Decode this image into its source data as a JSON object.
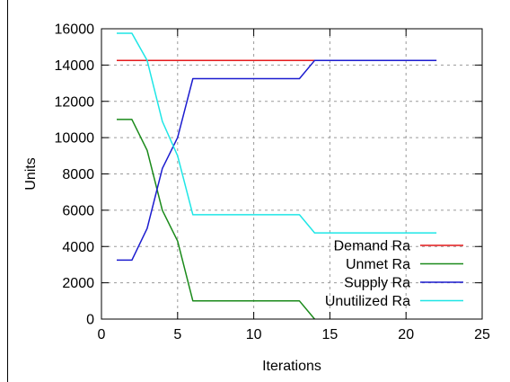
{
  "chart_data": {
    "type": "line",
    "title": "",
    "xlabel": "Iterations",
    "ylabel": "Units",
    "xlim": [
      0,
      25
    ],
    "ylim": [
      0,
      16000
    ],
    "xticks": [
      0,
      5,
      10,
      15,
      20,
      25
    ],
    "yticks": [
      0,
      2000,
      4000,
      6000,
      8000,
      10000,
      12000,
      14000,
      16000
    ],
    "grid": true,
    "legend": "bottom-right",
    "series": [
      {
        "name": "Demand Ra",
        "color": "#e41a1c",
        "points": [
          [
            1,
            14250
          ],
          [
            22,
            14250
          ]
        ]
      },
      {
        "name": "Unmet Ra",
        "color": "#1a8a1a",
        "points": [
          [
            1,
            11000
          ],
          [
            2,
            11000
          ],
          [
            3,
            9300
          ],
          [
            4,
            6000
          ],
          [
            5,
            4300
          ],
          [
            6,
            1000
          ],
          [
            13,
            1000
          ],
          [
            14,
            0
          ]
        ]
      },
      {
        "name": "Supply Ra",
        "color": "#1c1ccf",
        "points": [
          [
            1,
            3250
          ],
          [
            2,
            3250
          ],
          [
            3,
            5000
          ],
          [
            4,
            8300
          ],
          [
            5,
            10000
          ],
          [
            6,
            13250
          ],
          [
            13,
            13250
          ],
          [
            14,
            14250
          ],
          [
            22,
            14250
          ]
        ]
      },
      {
        "name": "Unutilized Ra",
        "color": "#1ee6e6",
        "points": [
          [
            1,
            15750
          ],
          [
            2,
            15750
          ],
          [
            3,
            14250
          ],
          [
            4,
            10900
          ],
          [
            5,
            9000
          ],
          [
            6,
            5750
          ],
          [
            13,
            5750
          ],
          [
            14,
            4750
          ],
          [
            22,
            4750
          ]
        ]
      }
    ]
  }
}
